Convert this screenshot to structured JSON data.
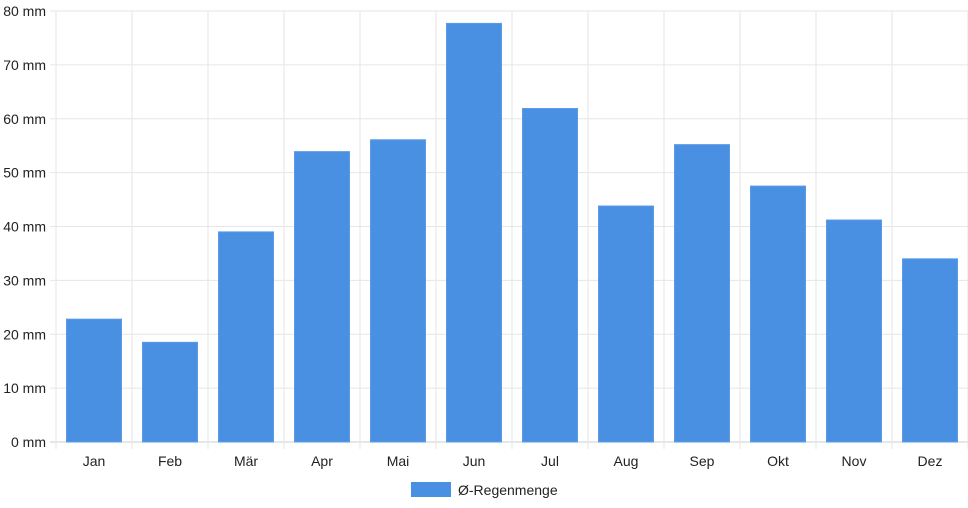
{
  "chart_data": {
    "type": "bar",
    "categories": [
      "Jan",
      "Feb",
      "Mär",
      "Apr",
      "Mai",
      "Jun",
      "Jul",
      "Aug",
      "Sep",
      "Okt",
      "Nov",
      "Dez"
    ],
    "series": [
      {
        "name": "Ø-Regenmenge",
        "color": "#4a90e2",
        "values": [
          22.8,
          18.5,
          39.0,
          53.9,
          56.1,
          77.7,
          61.9,
          43.8,
          55.2,
          47.5,
          41.2,
          34.0
        ]
      }
    ],
    "yticks": [
      "0 mm",
      "10 mm",
      "20 mm",
      "30 mm",
      "40 mm",
      "50 mm",
      "60 mm",
      "70 mm",
      "80 mm"
    ],
    "ylim": [
      0,
      80
    ],
    "grid": true,
    "legend_position": "bottom-center"
  }
}
